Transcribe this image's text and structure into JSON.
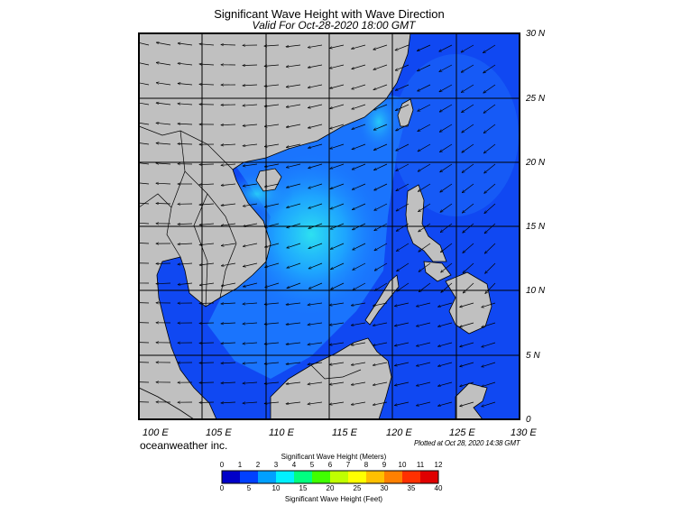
{
  "title": "Significant Wave Height with Wave Direction",
  "subtitle": "Valid For Oct-28-2020 18:00 GMT",
  "credit": "oceanweather inc.",
  "plotted": "Plotted at Oct 28, 2020 14:38 GMT",
  "map": {
    "lon_range": [
      100,
      130
    ],
    "lat_range": [
      0,
      30
    ],
    "lon_labels": [
      "100 E",
      "105 E",
      "110 E",
      "115 E",
      "120 E",
      "125 E",
      "130 E"
    ],
    "lat_labels": [
      "30 N",
      "25 N",
      "20 N",
      "15 N",
      "10 N",
      "5 N",
      "0"
    ],
    "colors": {
      "land": "#c0c0c0",
      "deep": "#0f44f0",
      "mid": "#1e8cff",
      "high": "#2af0f0"
    }
  },
  "colorbar": {
    "meters_title": "Significant Wave Height (Meters)",
    "feet_title": "Significant Wave Height (Feet)",
    "meters_ticks": [
      "0",
      "1",
      "2",
      "3",
      "4",
      "5",
      "6",
      "7",
      "8",
      "9",
      "10",
      "11",
      "12"
    ],
    "feet_ticks": [
      "0",
      "5",
      "10",
      "15",
      "20",
      "25",
      "30",
      "35",
      "40"
    ],
    "colors": [
      "#0000c8",
      "#0040ff",
      "#00a0ff",
      "#00f0ff",
      "#00ff80",
      "#40ff00",
      "#c0ff00",
      "#ffff00",
      "#ffc000",
      "#ff8000",
      "#ff3000",
      "#e00000"
    ]
  }
}
